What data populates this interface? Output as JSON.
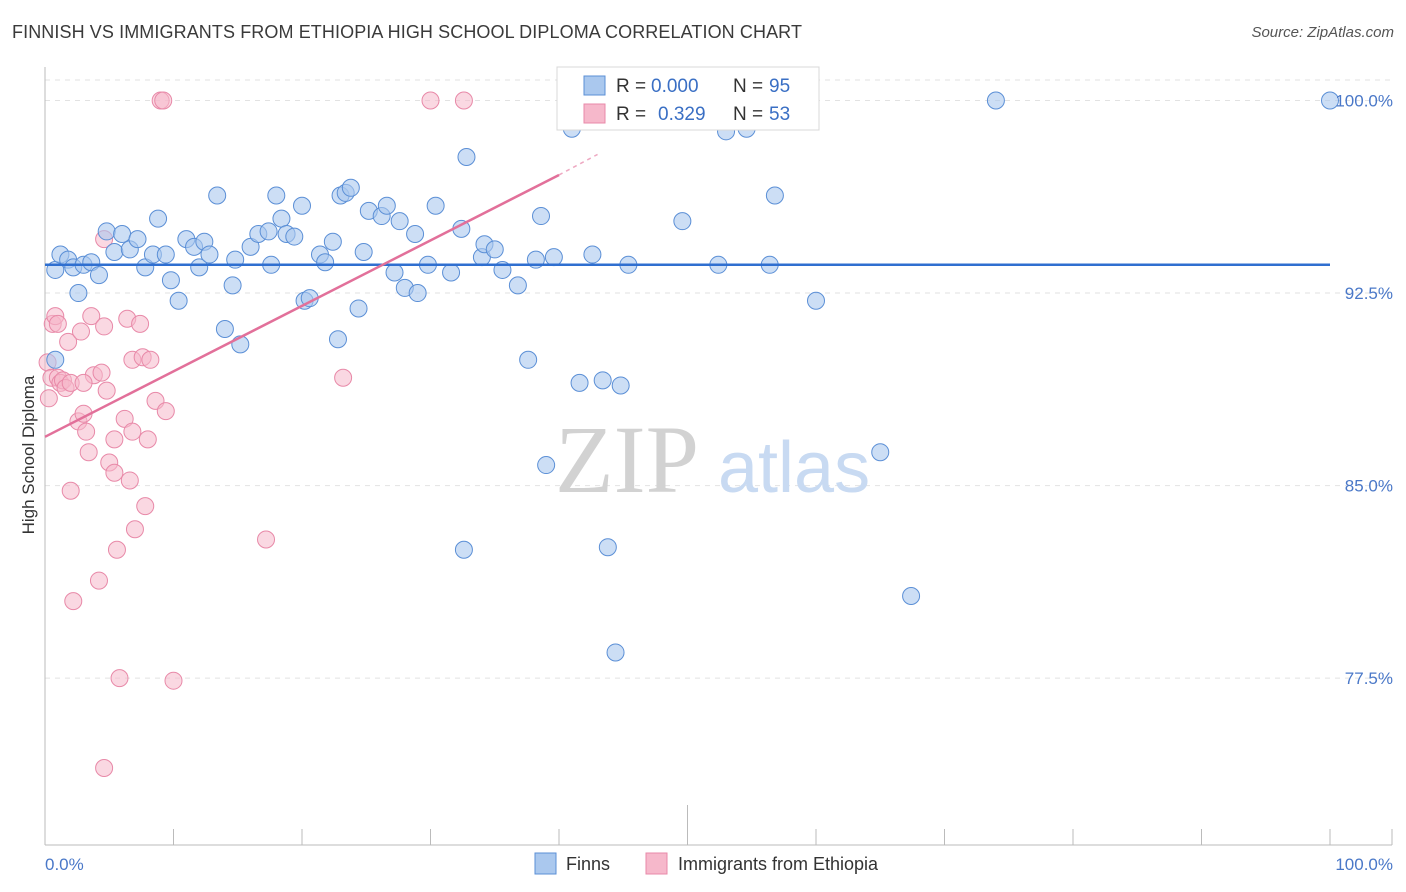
{
  "title": "FINNISH VS IMMIGRANTS FROM ETHIOPIA HIGH SCHOOL DIPLOMA CORRELATION CHART",
  "source": "Source: ZipAtlas.com",
  "watermark": {
    "zip": "ZIP",
    "atlas": "atlas"
  },
  "colors": {
    "finns_fill": "#aac8ee",
    "finns_stroke": "#5b8fd6",
    "finns_line": "#2f6fd0",
    "eth_fill": "#f6b8cb",
    "eth_stroke": "#e889a8",
    "eth_line": "#e2709a",
    "tick_text": "#4a78c8"
  },
  "legend": {
    "r_label": "R =",
    "n_label": "N =",
    "finns": {
      "r": "0.000",
      "n": "95"
    },
    "eth": {
      "r": "0.329",
      "n": "53"
    }
  },
  "chart_data": {
    "type": "scatter",
    "title": "FINNISH VS IMMIGRANTS FROM ETHIOPIA HIGH SCHOOL DIPLOMA CORRELATION CHART",
    "ylabel": "High School Diploma",
    "xlabel": "",
    "x_tick_labels": [
      "0.0%",
      "100.0%"
    ],
    "y_tick_labels": [
      "100.0%",
      "92.5%",
      "85.0%",
      "77.5%"
    ],
    "y_ticks": [
      100.0,
      92.5,
      85.0,
      77.5
    ],
    "xlim": [
      0,
      100
    ],
    "ylim": [
      71.0,
      101.5
    ],
    "grid": true,
    "legend_position": "top-center",
    "series": [
      {
        "name": "Finns",
        "trend": {
          "x": [
            0,
            100
          ],
          "y": [
            93.6,
            93.6
          ]
        },
        "points": [
          [
            0.8,
            93.4
          ],
          [
            1.2,
            94.0
          ],
          [
            1.8,
            93.8
          ],
          [
            2.2,
            93.5
          ],
          [
            2.6,
            92.5
          ],
          [
            3.0,
            93.6
          ],
          [
            3.6,
            93.7
          ],
          [
            4.2,
            93.2
          ],
          [
            4.8,
            94.9
          ],
          [
            5.4,
            94.1
          ],
          [
            6.0,
            94.8
          ],
          [
            6.6,
            94.2
          ],
          [
            7.2,
            94.6
          ],
          [
            7.8,
            93.5
          ],
          [
            8.4,
            94.0
          ],
          [
            8.8,
            95.4
          ],
          [
            9.4,
            94.0
          ],
          [
            9.8,
            93.0
          ],
          [
            10.4,
            92.2
          ],
          [
            11.0,
            94.6
          ],
          [
            11.6,
            94.3
          ],
          [
            12.0,
            93.5
          ],
          [
            12.4,
            94.5
          ],
          [
            12.8,
            94.0
          ],
          [
            13.4,
            96.3
          ],
          [
            14.0,
            91.1
          ],
          [
            14.6,
            92.8
          ],
          [
            14.8,
            93.8
          ],
          [
            15.2,
            90.5
          ],
          [
            16.0,
            94.3
          ],
          [
            16.6,
            94.8
          ],
          [
            17.4,
            94.9
          ],
          [
            17.6,
            93.6
          ],
          [
            18.0,
            96.3
          ],
          [
            18.4,
            95.4
          ],
          [
            18.8,
            94.8
          ],
          [
            19.4,
            94.7
          ],
          [
            20.0,
            95.9
          ],
          [
            20.2,
            92.2
          ],
          [
            20.6,
            92.3
          ],
          [
            21.4,
            94.0
          ],
          [
            21.8,
            93.7
          ],
          [
            22.4,
            94.5
          ],
          [
            22.8,
            90.7
          ],
          [
            23.0,
            96.3
          ],
          [
            23.4,
            96.4
          ],
          [
            23.8,
            96.6
          ],
          [
            24.4,
            91.9
          ],
          [
            24.8,
            94.1
          ],
          [
            25.2,
            95.7
          ],
          [
            26.2,
            95.5
          ],
          [
            26.6,
            95.9
          ],
          [
            27.2,
            93.3
          ],
          [
            27.6,
            95.3
          ],
          [
            28.0,
            92.7
          ],
          [
            28.8,
            94.8
          ],
          [
            29.0,
            92.5
          ],
          [
            29.8,
            93.6
          ],
          [
            30.4,
            95.9
          ],
          [
            31.6,
            93.3
          ],
          [
            32.4,
            95.0
          ],
          [
            32.8,
            97.8
          ],
          [
            34.0,
            93.9
          ],
          [
            34.2,
            94.4
          ],
          [
            35.0,
            94.2
          ],
          [
            35.6,
            93.4
          ],
          [
            36.8,
            92.8
          ],
          [
            37.6,
            89.9
          ],
          [
            38.2,
            93.8
          ],
          [
            38.6,
            95.5
          ],
          [
            39.0,
            85.8
          ],
          [
            39.6,
            93.9
          ],
          [
            41.0,
            98.9
          ],
          [
            41.6,
            89.0
          ],
          [
            42.6,
            94.0
          ],
          [
            43.4,
            89.1
          ],
          [
            43.8,
            82.6
          ],
          [
            44.4,
            78.5
          ],
          [
            44.8,
            88.9
          ],
          [
            45.4,
            93.6
          ],
          [
            49.6,
            95.3
          ],
          [
            52.4,
            93.6
          ],
          [
            54.6,
            98.9
          ],
          [
            56.4,
            93.6
          ],
          [
            56.8,
            96.3
          ],
          [
            57.4,
            100.0
          ],
          [
            59.0,
            100.0
          ],
          [
            60.0,
            92.2
          ],
          [
            65.0,
            86.3
          ],
          [
            67.4,
            80.7
          ],
          [
            74.0,
            100.0
          ],
          [
            100.0,
            100.0
          ],
          [
            0.8,
            89.9
          ],
          [
            32.6,
            82.5
          ],
          [
            53.0,
            98.8
          ]
        ]
      },
      {
        "name": "Immigrants from Ethiopia",
        "trend": {
          "x": [
            0,
            40
          ],
          "y": [
            86.9,
            97.1
          ]
        },
        "trend_dashed": {
          "x": [
            40,
            43
          ],
          "y": [
            97.1,
            97.9
          ]
        },
        "points": [
          [
            0.2,
            89.8
          ],
          [
            0.3,
            88.4
          ],
          [
            0.5,
            89.2
          ],
          [
            0.6,
            91.3
          ],
          [
            0.8,
            91.6
          ],
          [
            1.0,
            89.2
          ],
          [
            1.2,
            89.0
          ],
          [
            1.4,
            89.1
          ],
          [
            1.6,
            88.8
          ],
          [
            1.8,
            90.6
          ],
          [
            2.0,
            84.8
          ],
          [
            2.2,
            80.5
          ],
          [
            2.6,
            87.5
          ],
          [
            2.8,
            91.0
          ],
          [
            3.0,
            87.8
          ],
          [
            3.2,
            87.1
          ],
          [
            3.4,
            86.3
          ],
          [
            3.6,
            91.6
          ],
          [
            3.8,
            89.3
          ],
          [
            4.2,
            81.3
          ],
          [
            4.6,
            91.2
          ],
          [
            4.8,
            88.7
          ],
          [
            4.4,
            89.4
          ],
          [
            4.6,
            74.0
          ],
          [
            4.6,
            94.6
          ],
          [
            5.0,
            85.9
          ],
          [
            5.4,
            86.8
          ],
          [
            5.6,
            82.5
          ],
          [
            5.8,
            77.5
          ],
          [
            6.2,
            87.6
          ],
          [
            6.4,
            91.5
          ],
          [
            6.6,
            85.2
          ],
          [
            6.8,
            87.1
          ],
          [
            6.8,
            89.9
          ],
          [
            7.0,
            83.3
          ],
          [
            7.4,
            91.3
          ],
          [
            7.8,
            84.2
          ],
          [
            7.6,
            90.0
          ],
          [
            8.0,
            86.8
          ],
          [
            8.2,
            89.9
          ],
          [
            8.6,
            88.3
          ],
          [
            9.0,
            100.0
          ],
          [
            9.2,
            100.0
          ],
          [
            9.4,
            87.9
          ],
          [
            10.0,
            77.4
          ],
          [
            17.2,
            82.9
          ],
          [
            23.2,
            89.2
          ],
          [
            30.0,
            100.0
          ],
          [
            32.6,
            100.0
          ],
          [
            5.4,
            85.5
          ],
          [
            1.0,
            91.3
          ],
          [
            2.0,
            89.0
          ],
          [
            3.0,
            89.0
          ]
        ]
      }
    ]
  },
  "bottom_legend": {
    "finns": "Finns",
    "eth": "Immigrants from Ethiopia"
  }
}
